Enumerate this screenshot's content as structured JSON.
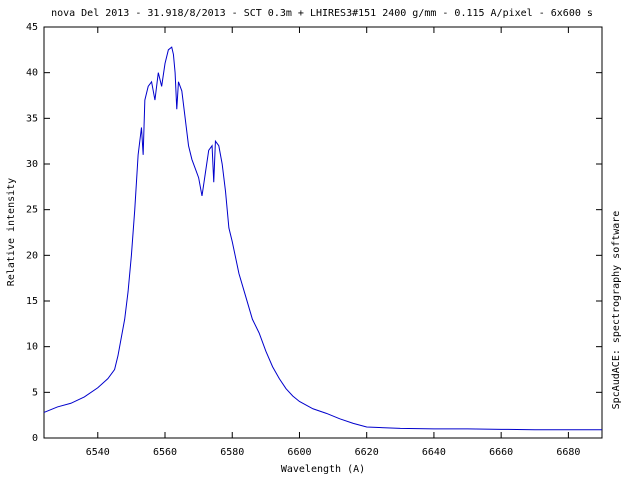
{
  "chart_data": {
    "type": "line",
    "title": "nova Del 2013 - 31.918/8/2013 - SCT 0.3m + LHIRES3#151 2400 g/mm - 0.115 A/pixel - 6x600 s",
    "x_label": "Wavelength (A)",
    "y_label": "Relative intensity",
    "side_note": "SpcAudACE: spectrography software",
    "xlim": [
      6524,
      6690
    ],
    "ylim": [
      0,
      45
    ],
    "xticks": [
      6540,
      6560,
      6580,
      6600,
      6620,
      6640,
      6660,
      6680
    ],
    "yticks": [
      0,
      5,
      10,
      15,
      20,
      25,
      30,
      35,
      40,
      45
    ],
    "series": [
      {
        "color": "#0000cc",
        "x": [
          6524,
          6528,
          6532,
          6536,
          6540,
          6543,
          6545,
          6546,
          6548,
          6549,
          6550,
          6551,
          6552,
          6553,
          6553.5,
          6554,
          6555,
          6556,
          6557,
          6558,
          6559,
          6560,
          6561,
          6562,
          6562.5,
          6563,
          6563.5,
          6564,
          6565,
          6566,
          6567,
          6568,
          6569,
          6570,
          6571,
          6572,
          6573,
          6574,
          6574.5,
          6575,
          6576,
          6577,
          6578,
          6579,
          6580,
          6582,
          6584,
          6586,
          6588,
          6590,
          6592,
          6594,
          6596,
          6598,
          6600,
          6604,
          6608,
          6612,
          6616,
          6620,
          6630,
          6640,
          6650,
          6660,
          6670,
          6680,
          6690
        ],
        "values": [
          2.8,
          3.4,
          3.8,
          4.5,
          5.5,
          6.5,
          7.5,
          9,
          13,
          16,
          20,
          25,
          31,
          34,
          31,
          37,
          38.5,
          39,
          37,
          40,
          38.5,
          41,
          42.5,
          42.8,
          42,
          40,
          36,
          39,
          38,
          35,
          32,
          30.5,
          29.5,
          28.5,
          26.5,
          29,
          31.5,
          32,
          28,
          32.5,
          32,
          30,
          27,
          23,
          21.5,
          18,
          15.5,
          13,
          11.5,
          9.5,
          7.8,
          6.5,
          5.4,
          4.6,
          4.0,
          3.2,
          2.7,
          2.1,
          1.6,
          1.2,
          1.05,
          1.0,
          1.0,
          0.95,
          0.9,
          0.9,
          0.9
        ]
      }
    ]
  }
}
